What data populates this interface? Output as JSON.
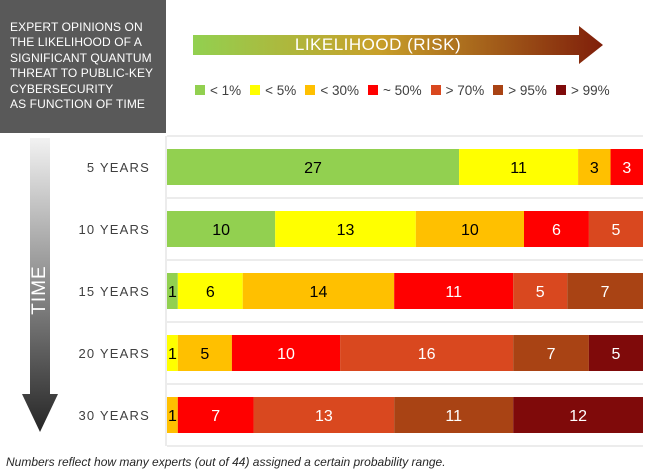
{
  "title_lines": [
    "EXPERT OPINIONS ON",
    "THE LIKELIHOOD OF A",
    "SIGNIFICANT QUANTUM",
    "THREAT TO PUBLIC-KEY",
    "CYBERSECURITY",
    "AS FUNCTION OF TIME"
  ],
  "likelihood_label": "LIKELIHOOD (RISK)",
  "time_label": "TIME",
  "footnote": "Numbers reflect how many experts (out of 44) assigned a certain probability range.",
  "colors": {
    "title_bg": "#595959",
    "arrow_start": "#92d050",
    "arrow_end": "#7f1e0a",
    "time_start": "#f2f2f2",
    "time_end": "#262626"
  },
  "chart_data": {
    "type": "bar",
    "orientation": "horizontal",
    "stacked": true,
    "categories": [
      "5 YEARS",
      "10 YEARS",
      "15 YEARS",
      "20 YEARS",
      "30 YEARS"
    ],
    "xlim": [
      0,
      44
    ],
    "legend_position": "top",
    "series": [
      {
        "name": "< 1%",
        "color": "#92d050",
        "values": [
          27,
          10,
          1,
          0,
          0
        ]
      },
      {
        "name": "< 5%",
        "color": "#ffff00",
        "values": [
          11,
          13,
          6,
          1,
          0
        ]
      },
      {
        "name": "< 30%",
        "color": "#ffc000",
        "values": [
          3,
          10,
          14,
          5,
          1
        ]
      },
      {
        "name": "~ 50%",
        "color": "#ff0000",
        "values": [
          3,
          6,
          11,
          10,
          7
        ]
      },
      {
        "name": "> 70%",
        "color": "#d9481f",
        "values": [
          0,
          5,
          5,
          16,
          13
        ]
      },
      {
        "name": "> 95%",
        "color": "#a94314",
        "values": [
          0,
          0,
          7,
          7,
          11
        ]
      },
      {
        "name": "> 99%",
        "color": "#7f0a0a",
        "values": [
          0,
          0,
          0,
          5,
          12
        ]
      }
    ]
  }
}
